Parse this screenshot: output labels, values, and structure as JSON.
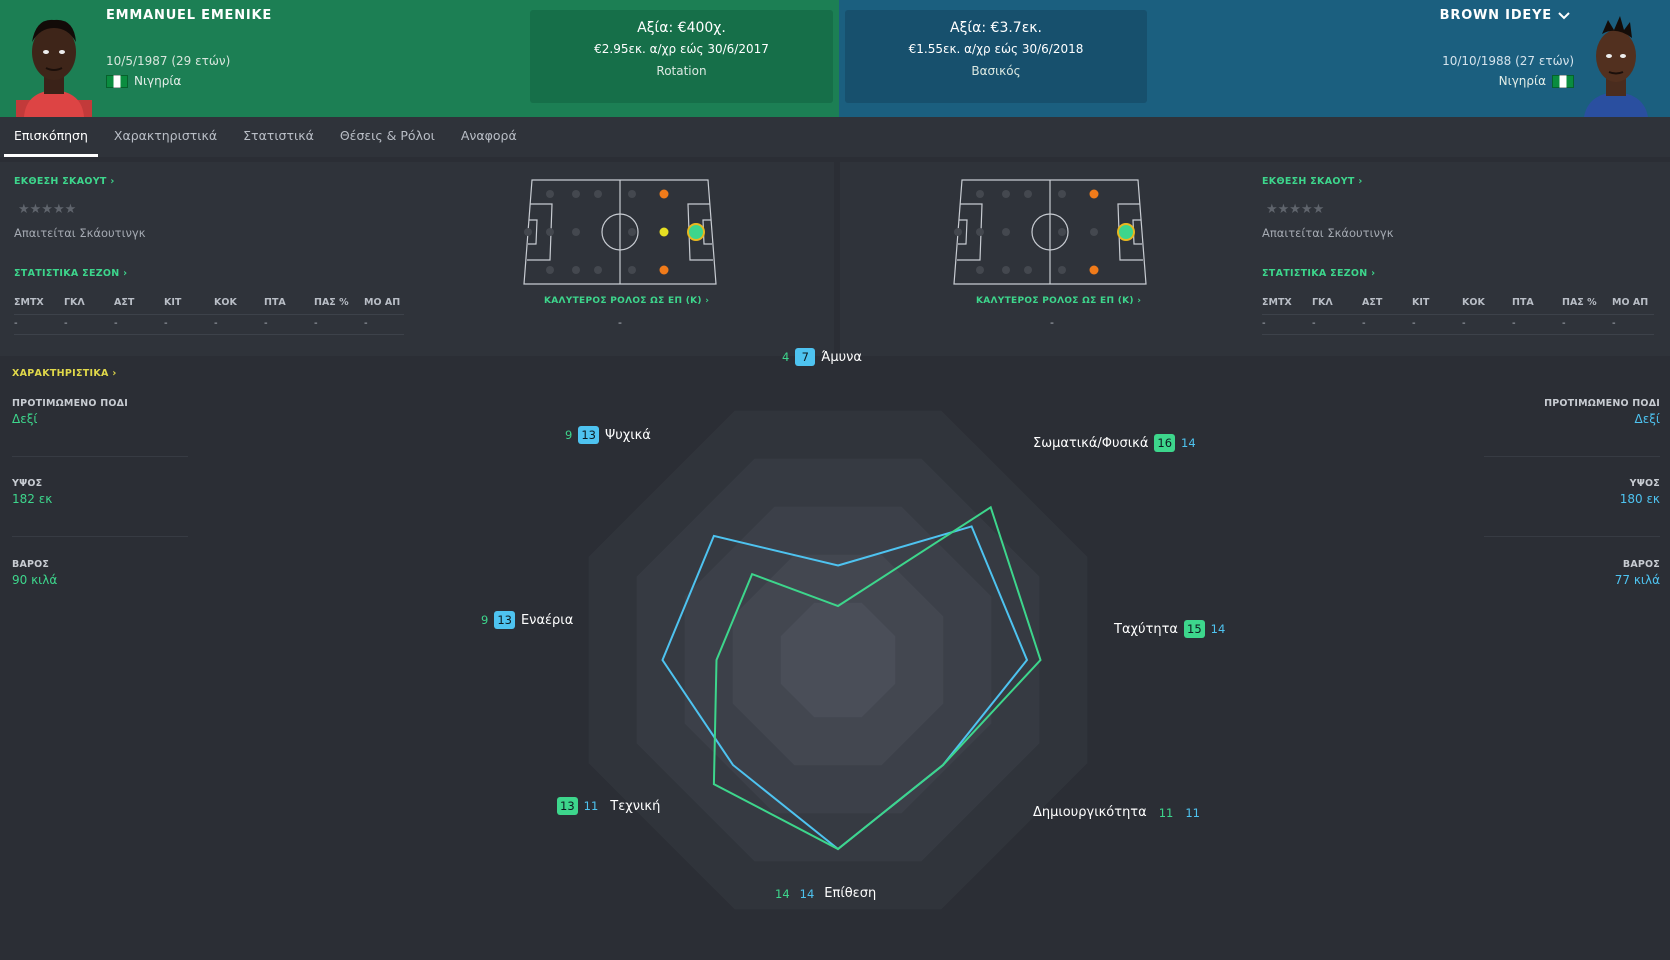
{
  "player_left": {
    "name": "EMMANUEL EMENIKE",
    "dob": "10/5/1987 (29 ετών)",
    "nationality": "Νιγηρία",
    "value": "Αξία: €400χ.",
    "wage": "€2.95εκ. α/χρ εώς 30/6/2017",
    "role": "Rotation",
    "scout_report": "ΕΚΘΕΣΗ ΣΚΑΟΥΤ",
    "scouting_required": "Απαιτείται Σκάουτινγκ",
    "season_stats": "ΣΤΑΤΙΣΤΙΚΑ ΣΕΖΟΝ",
    "best_role": "ΚΑΛΥΤΕΡΟΣ ΡΟΛΟΣ ΩΣ ΕΠ (Κ)",
    "best_role_value": "-",
    "preferred_foot_label": "ΠΡΟΤΙΜΩΜΕΝΟ ΠΟΔΙ",
    "preferred_foot": "Δεξί",
    "height_label": "ΥΨΟΣ",
    "height": "182 εκ",
    "weight_label": "ΒΑΡΟΣ",
    "weight": "90 κιλά"
  },
  "player_right": {
    "name": "BROWN IDEYE",
    "dob": "10/10/1988 (27 ετών)",
    "nationality": "Νιγηρία",
    "value": "Αξία: €3.7εκ.",
    "wage": "€1.55εκ. α/χρ εώς 30/6/2018",
    "role": "Βασικός",
    "scout_report": "ΕΚΘΕΣΗ ΣΚΑΟΥΤ",
    "scouting_required": "Απαιτείται Σκάουτινγκ",
    "season_stats": "ΣΤΑΤΙΣΤΙΚΑ ΣΕΖΟΝ",
    "best_role": "ΚΑΛΥΤΕΡΟΣ ΡΟΛΟΣ ΩΣ ΕΠ (Κ)",
    "best_role_value": "-",
    "preferred_foot_label": "ΠΡΟΤΙΜΩΜΕΝΟ ΠΟΔΙ",
    "preferred_foot": "Δεξί",
    "height_label": "ΥΨΟΣ",
    "height": "180 εκ",
    "weight_label": "ΒΑΡΟΣ",
    "weight": "77 κιλά"
  },
  "tabs": [
    "Επισκόπηση",
    "Χαρακτηριστικά",
    "Στατιστικά",
    "Θέσεις & Ρόλοι",
    "Αναφορά"
  ],
  "stat_headers": [
    "ΣΜΤΧ",
    "ΓΚΛ",
    "ΑΣΤ",
    "ΚΙΤ",
    "ΚΟΚ",
    "ΠΤΑ",
    "ΠΑΣ %",
    "ΜΟ ΑΠ"
  ],
  "stat_values": [
    "-",
    "-",
    "-",
    "-",
    "-",
    "-",
    "-",
    "-"
  ],
  "characteristics_link": "ΧΑΡΑΚΤΗΡΙΣΤΙΚΑ",
  "stars": "★★★★★",
  "chevron": "›",
  "colors": {
    "left_header": "#1c7f54",
    "right_header": "#1b5f7f",
    "left_series": "#3dd68c",
    "right_series": "#4ec3f0"
  },
  "radar": {
    "max": 20,
    "axes": [
      {
        "name": "Άμυνα",
        "left": 4,
        "right": 7
      },
      {
        "name": "Σωματικά/Φυσικά",
        "left": 16,
        "right": 14
      },
      {
        "name": "Ταχύτητα",
        "left": 15,
        "right": 14
      },
      {
        "name": "Δημιουργικότητα",
        "left": 11,
        "right": 11
      },
      {
        "name": "Επίθεση",
        "left": 14,
        "right": 14
      },
      {
        "name": "Τεχνική",
        "left": 13,
        "right": 11
      },
      {
        "name": "Εναέρια",
        "left": 9,
        "right": 13
      },
      {
        "name": "Ψυχικά",
        "left": 9,
        "right": 13
      }
    ]
  }
}
